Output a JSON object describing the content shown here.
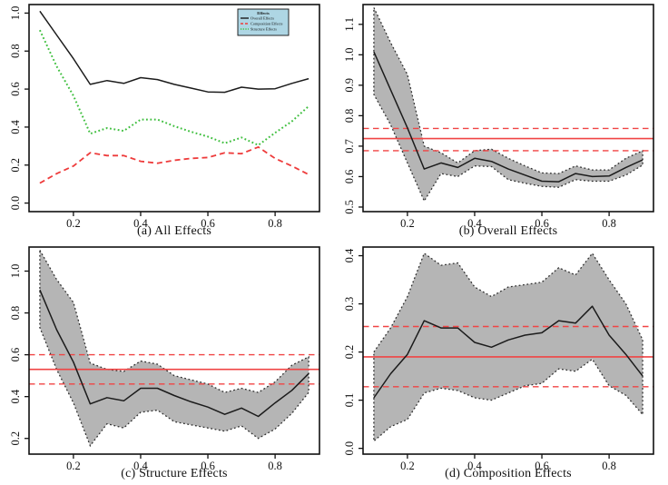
{
  "colors": {
    "black_series": "#1b1b1b",
    "red_series": "#ee3b3b",
    "green_series": "#3fbf3f",
    "band_fill": "#b5b5b5",
    "band_border": "#2e2e2e",
    "hline_red": "#f04444",
    "legend_bg": "#aed6e4",
    "axis": "#111111"
  },
  "chart_data": [
    {
      "type": "line",
      "title": "(a) All Effects",
      "x": [
        0.1,
        0.15,
        0.2,
        0.25,
        0.3,
        0.35,
        0.4,
        0.45,
        0.5,
        0.55,
        0.6,
        0.65,
        0.7,
        0.75,
        0.8,
        0.85,
        0.9
      ],
      "xlim": [
        0.068,
        0.932
      ],
      "ylim": [
        -0.045,
        1.045
      ],
      "xticks": [
        0.2,
        0.4,
        0.6,
        0.8
      ],
      "xtick_labels": [
        "0.2",
        "0.4",
        "0.6",
        "0.8"
      ],
      "yticks": [
        0.0,
        0.2,
        0.4,
        0.6,
        0.8,
        1.0
      ],
      "ytick_labels": [
        "0.0",
        "0.2",
        "0.4",
        "0.6",
        "0.8",
        "1.0"
      ],
      "grid": false,
      "series": [
        {
          "name": "Overall Effects",
          "color": "#1b1b1b",
          "style": "solid",
          "values": [
            1.01,
            0.885,
            0.76,
            0.625,
            0.645,
            0.63,
            0.66,
            0.65,
            0.625,
            0.605,
            0.585,
            0.583,
            0.61,
            0.6,
            0.602,
            0.63,
            0.655
          ]
        },
        {
          "name": "Composition Effects",
          "color": "#ee3b3b",
          "style": "dashed",
          "values": [
            0.105,
            0.155,
            0.195,
            0.265,
            0.25,
            0.25,
            0.22,
            0.21,
            0.225,
            0.235,
            0.24,
            0.265,
            0.26,
            0.295,
            0.235,
            0.195,
            0.15
          ]
        },
        {
          "name": "Structure Effects",
          "color": "#3fbf3f",
          "style": "dotted",
          "values": [
            0.91,
            0.72,
            0.565,
            0.365,
            0.395,
            0.38,
            0.44,
            0.44,
            0.405,
            0.375,
            0.35,
            0.315,
            0.345,
            0.305,
            0.37,
            0.43,
            0.51
          ]
        }
      ],
      "legend": {
        "title": "Effects",
        "position": "top-right",
        "entries": [
          "Overall Effects",
          "Composition Effects",
          "Structure Effects"
        ]
      }
    },
    {
      "type": "line",
      "title": "(b) Overall Effects",
      "x": [
        0.1,
        0.15,
        0.2,
        0.25,
        0.3,
        0.35,
        0.4,
        0.45,
        0.5,
        0.55,
        0.6,
        0.65,
        0.7,
        0.75,
        0.8,
        0.85,
        0.9
      ],
      "xlim": [
        0.068,
        0.932
      ],
      "ylim": [
        0.485,
        1.165
      ],
      "xticks": [
        0.2,
        0.4,
        0.6,
        0.8
      ],
      "xtick_labels": [
        "0.2",
        "0.4",
        "0.6",
        "0.8"
      ],
      "yticks": [
        0.5,
        0.6,
        0.7,
        0.8,
        0.9,
        1.0,
        1.1
      ],
      "ytick_labels": [
        "0.5",
        "0.6",
        "0.7",
        "0.8",
        "0.9",
        "1.0",
        "1.1"
      ],
      "grid": false,
      "band": {
        "upper": [
          1.155,
          1.04,
          0.935,
          0.7,
          0.678,
          0.645,
          0.685,
          0.69,
          0.66,
          0.635,
          0.612,
          0.61,
          0.635,
          0.622,
          0.622,
          0.66,
          0.685
        ],
        "lower": [
          0.87,
          0.77,
          0.645,
          0.52,
          0.61,
          0.6,
          0.635,
          0.633,
          0.59,
          0.578,
          0.568,
          0.565,
          0.59,
          0.585,
          0.585,
          0.605,
          0.638
        ]
      },
      "series": [
        {
          "name": "Overall Effects",
          "color": "#1b1b1b",
          "style": "solid",
          "values": [
            1.01,
            0.885,
            0.76,
            0.625,
            0.645,
            0.63,
            0.66,
            0.65,
            0.625,
            0.605,
            0.585,
            0.583,
            0.61,
            0.6,
            0.602,
            0.63,
            0.655
          ]
        }
      ],
      "hlines": [
        {
          "y": 0.725,
          "style": "solid",
          "color": "#f04444"
        },
        {
          "y": 0.758,
          "style": "dashed",
          "color": "#f04444"
        },
        {
          "y": 0.685,
          "style": "dashed",
          "color": "#f04444"
        }
      ]
    },
    {
      "type": "line",
      "title": "(c) Structure  Effects",
      "x": [
        0.1,
        0.15,
        0.2,
        0.25,
        0.3,
        0.35,
        0.4,
        0.45,
        0.5,
        0.55,
        0.6,
        0.65,
        0.7,
        0.75,
        0.8,
        0.85,
        0.9
      ],
      "xlim": [
        0.068,
        0.932
      ],
      "ylim": [
        0.125,
        1.115
      ],
      "xticks": [
        0.2,
        0.4,
        0.6,
        0.8
      ],
      "xtick_labels": [
        "0.2",
        "0.4",
        "0.6",
        "0.8"
      ],
      "yticks": [
        0.2,
        0.4,
        0.6,
        0.8,
        1.0
      ],
      "ytick_labels": [
        "0.2",
        "0.4",
        "0.6",
        "0.8",
        "1.0"
      ],
      "grid": false,
      "band": {
        "upper": [
          1.1,
          0.96,
          0.85,
          0.56,
          0.53,
          0.52,
          0.57,
          0.555,
          0.5,
          0.48,
          0.46,
          0.42,
          0.44,
          0.42,
          0.47,
          0.55,
          0.59
        ],
        "lower": [
          0.73,
          0.53,
          0.37,
          0.165,
          0.27,
          0.25,
          0.325,
          0.335,
          0.28,
          0.265,
          0.25,
          0.235,
          0.26,
          0.2,
          0.245,
          0.32,
          0.42
        ]
      },
      "series": [
        {
          "name": "Structure Effects",
          "color": "#1b1b1b",
          "style": "solid",
          "values": [
            0.91,
            0.72,
            0.565,
            0.365,
            0.395,
            0.38,
            0.44,
            0.44,
            0.405,
            0.375,
            0.35,
            0.315,
            0.345,
            0.305,
            0.37,
            0.43,
            0.51
          ]
        }
      ],
      "hlines": [
        {
          "y": 0.53,
          "style": "solid",
          "color": "#f04444"
        },
        {
          "y": 0.6,
          "style": "dashed",
          "color": "#f04444"
        },
        {
          "y": 0.46,
          "style": "dashed",
          "color": "#f04444"
        }
      ]
    },
    {
      "type": "line",
      "title": "(d) Composition Effects",
      "x": [
        0.1,
        0.15,
        0.2,
        0.25,
        0.3,
        0.35,
        0.4,
        0.45,
        0.5,
        0.55,
        0.6,
        0.65,
        0.7,
        0.75,
        0.8,
        0.85,
        0.9
      ],
      "xlim": [
        0.068,
        0.932
      ],
      "ylim": [
        -0.012,
        0.418
      ],
      "xticks": [
        0.2,
        0.4,
        0.6,
        0.8
      ],
      "xtick_labels": [
        "0.2",
        "0.4",
        "0.6",
        "0.8"
      ],
      "yticks": [
        0.0,
        0.1,
        0.2,
        0.3,
        0.4
      ],
      "ytick_labels": [
        "0.0",
        "0.1",
        "0.2",
        "0.3",
        "0.4"
      ],
      "grid": false,
      "band": {
        "upper": [
          0.2,
          0.25,
          0.315,
          0.405,
          0.38,
          0.385,
          0.335,
          0.315,
          0.335,
          0.34,
          0.345,
          0.375,
          0.36,
          0.405,
          0.35,
          0.3,
          0.225
        ],
        "lower": [
          0.015,
          0.045,
          0.06,
          0.115,
          0.125,
          0.12,
          0.105,
          0.1,
          0.115,
          0.13,
          0.135,
          0.165,
          0.16,
          0.185,
          0.13,
          0.11,
          0.07
        ]
      },
      "series": [
        {
          "name": "Composition Effects",
          "color": "#1b1b1b",
          "style": "solid",
          "values": [
            0.105,
            0.155,
            0.195,
            0.265,
            0.25,
            0.25,
            0.22,
            0.21,
            0.225,
            0.235,
            0.24,
            0.265,
            0.26,
            0.295,
            0.235,
            0.195,
            0.15
          ]
        }
      ],
      "hlines": [
        {
          "y": 0.19,
          "style": "solid",
          "color": "#f04444"
        },
        {
          "y": 0.253,
          "style": "dashed",
          "color": "#f04444"
        },
        {
          "y": 0.128,
          "style": "dashed",
          "color": "#f04444"
        }
      ]
    }
  ]
}
